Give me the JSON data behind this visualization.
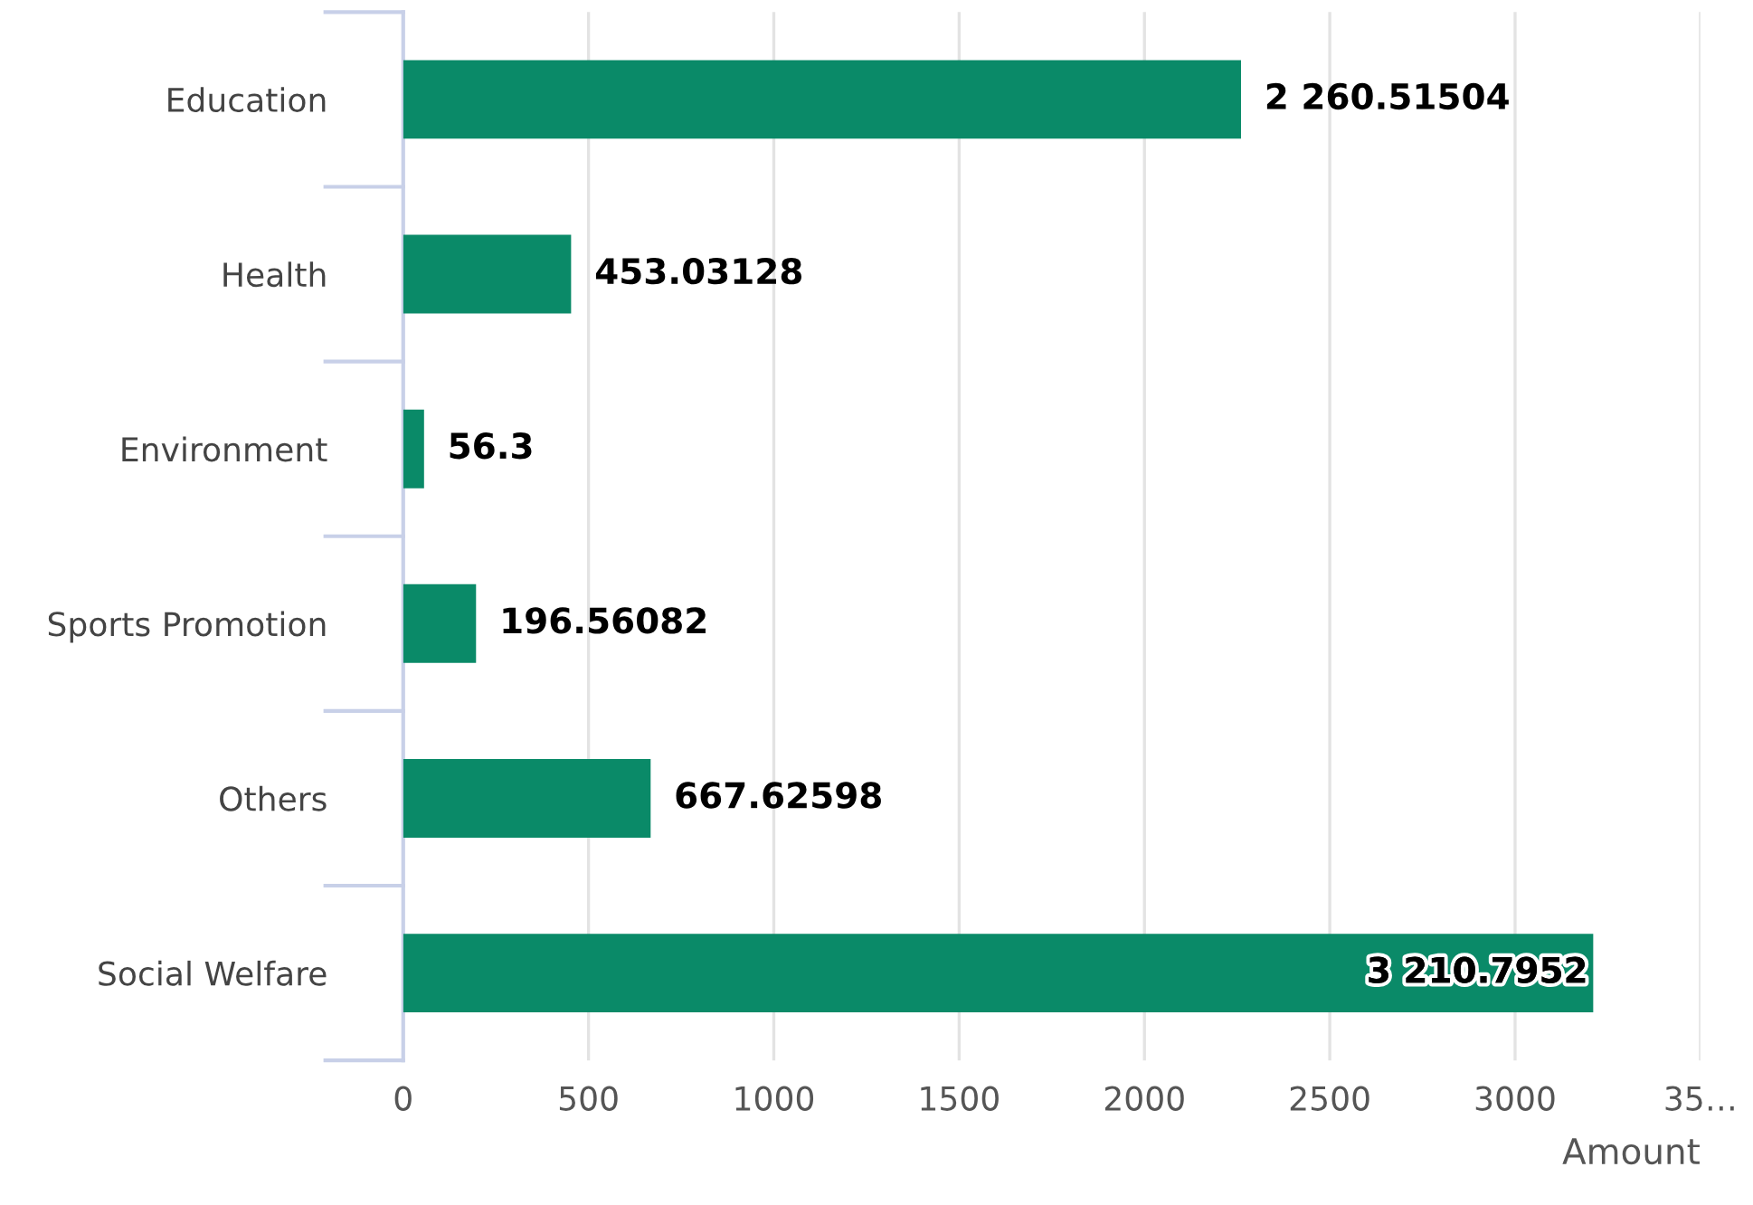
{
  "chart_data": {
    "type": "bar",
    "orientation": "horizontal",
    "categories": [
      "Education",
      "Health",
      "Environment",
      "Sports Promotion",
      "Others",
      "Social Welfare"
    ],
    "values": [
      2260.51504,
      453.03128,
      56.3,
      196.56082,
      667.62598,
      3210.7952
    ],
    "value_labels": [
      "2 260.51504",
      "453.03128",
      "56.3",
      "196.56082",
      "667.62598",
      "3 210.7952"
    ],
    "color": "#0a8a68",
    "xlabel": "Amount",
    "xlim": [
      0,
      3500
    ],
    "xticks": [
      0,
      500,
      1000,
      1500,
      2000,
      2500,
      3000,
      {
        "value": 3500,
        "label": "35…"
      }
    ],
    "grid": "x"
  }
}
